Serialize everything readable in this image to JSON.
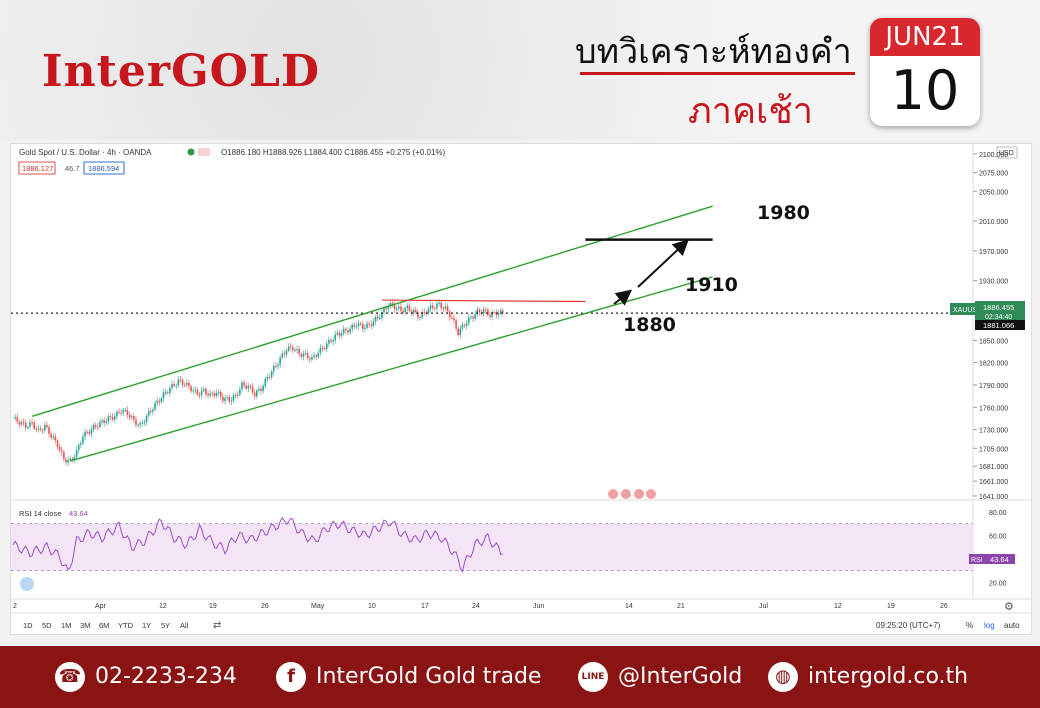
{
  "header": {
    "logo": "InterGOLD",
    "title_line1": "บทวิเคราะห์ทองคำ",
    "title_line2": "ภาคเช้า"
  },
  "calendar": {
    "month": "JUN21",
    "day": "10"
  },
  "chart_header": {
    "symbol": "Gold Spot / U.S. Dollar · 4h · OANDA",
    "ohlc": "O1886.180 H1888.926 L1884.400 C1886.455 +0.275 (+0.01%)",
    "sell": "1886.127",
    "spread": "46.7",
    "buy": "1886.594",
    "currency": "USD"
  },
  "price_axis": {
    "tick_labels": [
      "2100.000",
      "2075.000",
      "2050.000",
      "2010.000",
      "1970.000",
      "1930.000",
      "1850.000",
      "1820.000",
      "1790.000",
      "1760.000",
      "1730.000",
      "1705.000",
      "1681.000",
      "1661.000",
      "1641.000"
    ],
    "price_tag_label": "XAUUSD",
    "price_tag_value": "1886.455",
    "price_tag_time": "02:34:40",
    "line_label": "1881.066"
  },
  "rsi": {
    "label": "RSI 14 close",
    "value": "43.64",
    "tag": "RSI",
    "axis": [
      "80.00",
      "60.00",
      "40.00",
      "20.00"
    ]
  },
  "time_axis": [
    "2",
    "Apr",
    "12",
    "19",
    "26",
    "May",
    "10",
    "17",
    "24",
    "Jun",
    "14",
    "21",
    "Jul",
    "12",
    "19",
    "26"
  ],
  "toolbar": {
    "ranges": [
      "1D",
      "5D",
      "1M",
      "3M",
      "6M",
      "YTD",
      "1Y",
      "5Y",
      "All"
    ],
    "clock": "09:25:20 (UTC+7)",
    "pct": "%",
    "log": "log",
    "auto": "auto"
  },
  "footer": {
    "phone": "02-2233-234",
    "facebook": "InterGold Gold trade",
    "line": "@InterGold",
    "web": "intergold.co.th"
  },
  "chart_data": {
    "type": "candlestick",
    "title": "Gold Spot / U.S. Dollar · 4h · OANDA",
    "ylim": [
      1641,
      2100
    ],
    "x_labels": [
      "2",
      "Apr",
      "12",
      "19",
      "26",
      "May",
      "10",
      "17",
      "24",
      "Jun",
      "14",
      "21",
      "Jul",
      "12",
      "19",
      "26"
    ],
    "close_path": [
      [
        0,
        1745
      ],
      [
        3,
        1740
      ],
      [
        6,
        1735
      ],
      [
        9,
        1738
      ],
      [
        12,
        1728
      ],
      [
        15,
        1735
      ],
      [
        18,
        1722
      ],
      [
        21,
        1710
      ],
      [
        24,
        1690
      ],
      [
        27,
        1688
      ],
      [
        30,
        1700
      ],
      [
        33,
        1722
      ],
      [
        36,
        1728
      ],
      [
        39,
        1735
      ],
      [
        42,
        1740
      ],
      [
        45,
        1745
      ],
      [
        48,
        1748
      ],
      [
        51,
        1756
      ],
      [
        54,
        1752
      ],
      [
        57,
        1742
      ],
      [
        60,
        1735
      ],
      [
        63,
        1748
      ],
      [
        66,
        1760
      ],
      [
        69,
        1770
      ],
      [
        72,
        1780
      ],
      [
        75,
        1788
      ],
      [
        78,
        1795
      ],
      [
        81,
        1792
      ],
      [
        84,
        1785
      ],
      [
        87,
        1778
      ],
      [
        90,
        1782
      ],
      [
        93,
        1776
      ],
      [
        96,
        1780
      ],
      [
        99,
        1772
      ],
      [
        102,
        1770
      ],
      [
        105,
        1775
      ],
      [
        108,
        1790
      ],
      [
        111,
        1788
      ],
      [
        114,
        1778
      ],
      [
        117,
        1785
      ],
      [
        120,
        1800
      ],
      [
        123,
        1812
      ],
      [
        126,
        1825
      ],
      [
        129,
        1838
      ],
      [
        132,
        1840
      ],
      [
        135,
        1832
      ],
      [
        138,
        1830
      ],
      [
        141,
        1825
      ],
      [
        144,
        1834
      ],
      [
        147,
        1842
      ],
      [
        150,
        1850
      ],
      [
        153,
        1858
      ],
      [
        156,
        1862
      ],
      [
        159,
        1865
      ],
      [
        162,
        1872
      ],
      [
        165,
        1868
      ],
      [
        168,
        1870
      ],
      [
        171,
        1878
      ],
      [
        174,
        1886
      ],
      [
        177,
        1898
      ],
      [
        180,
        1895
      ],
      [
        183,
        1890
      ],
      [
        186,
        1893
      ],
      [
        189,
        1888
      ],
      [
        192,
        1882
      ],
      [
        195,
        1890
      ],
      [
        198,
        1895
      ],
      [
        201,
        1898
      ],
      [
        204,
        1892
      ],
      [
        207,
        1880
      ],
      [
        210,
        1860
      ],
      [
        213,
        1872
      ],
      [
        216,
        1880
      ],
      [
        219,
        1888
      ],
      [
        222,
        1890
      ],
      [
        225,
        1884
      ],
      [
        228,
        1887
      ],
      [
        231,
        1886.5
      ]
    ],
    "annotations": {
      "levels": [
        "1980",
        "1910",
        "1880"
      ]
    },
    "channel": {
      "upper": [
        [
          9,
          1748
        ],
        [
          330,
          2030
        ]
      ],
      "lower": [
        [
          27,
          1688
        ],
        [
          330,
          1935
        ]
      ]
    },
    "resistance_line": {
      "from": [
        174,
        1904
      ],
      "to": [
        270,
        1902
      ]
    },
    "target_line": {
      "from": [
        270,
        1985
      ],
      "to": [
        330,
        1985
      ]
    },
    "rsi_series": [
      [
        0,
        52
      ],
      [
        8,
        45
      ],
      [
        16,
        50
      ],
      [
        22,
        42
      ],
      [
        26,
        28
      ],
      [
        30,
        55
      ],
      [
        36,
        62
      ],
      [
        42,
        58
      ],
      [
        50,
        68
      ],
      [
        56,
        50
      ],
      [
        62,
        55
      ],
      [
        70,
        72
      ],
      [
        76,
        58
      ],
      [
        82,
        52
      ],
      [
        88,
        65
      ],
      [
        94,
        54
      ],
      [
        100,
        48
      ],
      [
        106,
        60
      ],
      [
        112,
        56
      ],
      [
        118,
        62
      ],
      [
        124,
        68
      ],
      [
        130,
        74
      ],
      [
        136,
        62
      ],
      [
        142,
        55
      ],
      [
        148,
        66
      ],
      [
        154,
        70
      ],
      [
        160,
        64
      ],
      [
        166,
        60
      ],
      [
        172,
        66
      ],
      [
        178,
        72
      ],
      [
        184,
        60
      ],
      [
        190,
        56
      ],
      [
        196,
        62
      ],
      [
        202,
        58
      ],
      [
        208,
        45
      ],
      [
        212,
        32
      ],
      [
        218,
        52
      ],
      [
        224,
        58
      ],
      [
        228,
        50
      ],
      [
        231,
        44
      ]
    ],
    "rsi_ylim": [
      10,
      85
    ],
    "rsi_band": [
      30,
      70
    ],
    "current_price": 1886.455
  }
}
